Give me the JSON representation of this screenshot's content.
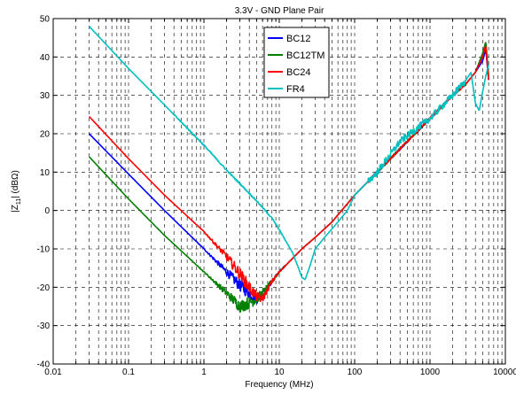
{
  "chart_data": {
    "type": "line",
    "title": "3.3V - GND Plane Pair",
    "xlabel": "Frequency (MHz)",
    "ylabel": "|Z11| (dBΩ)",
    "ylabel_parts": {
      "pre": "|Z",
      "sub": "11",
      "post": "| (dBΩ)"
    },
    "x_scale": "log",
    "xlim": [
      0.01,
      10000
    ],
    "ylim": [
      -40,
      50
    ],
    "x_ticks": [
      0.01,
      0.1,
      1,
      10,
      100,
      1000,
      10000
    ],
    "x_tick_labels": [
      "0.01",
      "0.1",
      "1",
      "10",
      "100",
      "1000",
      "10000"
    ],
    "y_ticks": [
      -40,
      -30,
      -20,
      -10,
      0,
      10,
      20,
      30,
      40,
      50
    ],
    "y_tick_labels": [
      "-40",
      "-30",
      "-20",
      "-10",
      "0",
      "10",
      "20",
      "30",
      "40",
      "50"
    ],
    "grid": true,
    "legend_position": "top-center",
    "series": [
      {
        "name": "BC12",
        "color": "#0000ff",
        "x": [
          0.03,
          0.1,
          0.3,
          1,
          2,
          3,
          4,
          5,
          6,
          8,
          10,
          20,
          30,
          50,
          100,
          200,
          500,
          1000,
          2000,
          3000,
          4000,
          5000,
          5500,
          6000
        ],
        "y": [
          20,
          9.5,
          0,
          -10,
          -16,
          -19.5,
          -21.5,
          -23,
          -22,
          -18.5,
          -16,
          -10,
          -7,
          -3,
          4,
          10,
          18,
          24,
          30,
          33,
          36,
          39,
          42,
          34
        ]
      },
      {
        "name": "BC12TM",
        "color": "#008000",
        "x": [
          0.03,
          0.1,
          0.3,
          1,
          2,
          3,
          4,
          5,
          6,
          8,
          10,
          20,
          30,
          50,
          100,
          200,
          500,
          1000,
          2000,
          3000,
          4000,
          5000,
          5500,
          6000
        ],
        "y": [
          14,
          3,
          -6.5,
          -16,
          -21.5,
          -25,
          -24,
          -23,
          -21.5,
          -18.5,
          -16,
          -10,
          -7,
          -3,
          4,
          10,
          18,
          24,
          30,
          33,
          36,
          41,
          44,
          35
        ]
      },
      {
        "name": "BC24",
        "color": "#ff0000",
        "x": [
          0.03,
          0.1,
          0.3,
          1,
          2,
          3,
          4,
          5,
          6,
          8,
          10,
          20,
          30,
          50,
          100,
          200,
          500,
          1000,
          2000,
          3000,
          4000,
          5000,
          5500,
          6000
        ],
        "y": [
          24.5,
          13.5,
          4,
          -5.5,
          -12,
          -16.5,
          -20,
          -22.5,
          -23,
          -18.5,
          -16,
          -10,
          -7,
          -3,
          4,
          10,
          18,
          24,
          30,
          33,
          36,
          40,
          43,
          34
        ]
      },
      {
        "name": "FR4",
        "color": "#00bfbf",
        "x": [
          0.03,
          0.1,
          0.3,
          1,
          2,
          3,
          5,
          8,
          10,
          15,
          18,
          20,
          22,
          25,
          30,
          40,
          60,
          80,
          100,
          200,
          400,
          1000,
          2000,
          3000,
          3500,
          4000,
          4500,
          5000,
          5500,
          6000
        ],
        "y": [
          48,
          37,
          27.5,
          17,
          10.5,
          7,
          2.5,
          -2,
          -5,
          -11,
          -15,
          -17.5,
          -18,
          -15,
          -10,
          -7,
          -3,
          0,
          4,
          10,
          18,
          24,
          30,
          34,
          36,
          28,
          26,
          31,
          35,
          38
        ]
      }
    ]
  }
}
